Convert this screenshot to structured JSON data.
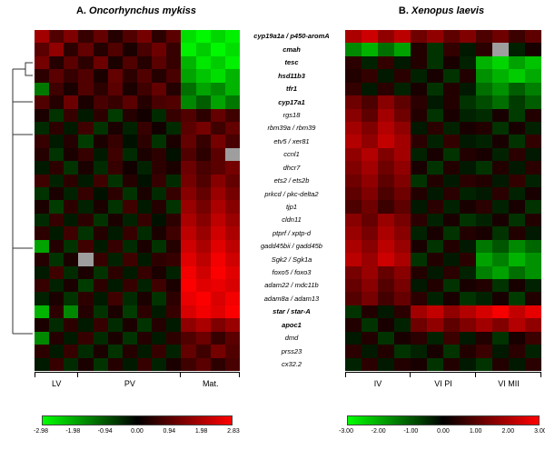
{
  "colors": {
    "low": "#00ff00",
    "mid": "#000000",
    "high": "#ff0000",
    "na": "#9e9e9e"
  },
  "panelA": {
    "title_prefix": "A. ",
    "title_species": "Oncorhynchus mykiss",
    "groups": [
      {
        "label": "LV",
        "cols": 3
      },
      {
        "label": "PV",
        "cols": 7
      },
      {
        "label": "Mat.",
        "cols": 4
      }
    ],
    "scale_labels": [
      "-2.98",
      "-1.98",
      "-0.94",
      "0.00",
      "0.94",
      "1.98",
      "2.83"
    ]
  },
  "panelB": {
    "title_prefix": "B. ",
    "title_species": "Xenopus laevis",
    "groups": [
      {
        "label": "IV",
        "cols": 4
      },
      {
        "label": "VI PI",
        "cols": 4
      },
      {
        "label": "VI MII",
        "cols": 4
      }
    ],
    "scale_labels": [
      "-3.00",
      "-2.00",
      "-1.00",
      "0.00",
      "1.00",
      "2.00",
      "3.00"
    ]
  },
  "genes": [
    {
      "label": "cyp19a1a / p450-aromA",
      "bold": true
    },
    {
      "label": "cmah",
      "bold": true
    },
    {
      "label": "tesc",
      "bold": true
    },
    {
      "label": "hsd11b3",
      "bold": true
    },
    {
      "label": "tfr1",
      "bold": true
    },
    {
      "label": "cyp17a1",
      "bold": true
    },
    {
      "label": "rgs18",
      "bold": false
    },
    {
      "label": "rbm39a / rbm39",
      "bold": false
    },
    {
      "label": "etv5 / xer81",
      "bold": false
    },
    {
      "label": "ccnl1",
      "bold": false
    },
    {
      "label": "dhcr7",
      "bold": false
    },
    {
      "label": "ets2 / ets2b",
      "bold": false
    },
    {
      "label": "prkcd / pkc-delta2",
      "bold": false
    },
    {
      "label": "tjp1",
      "bold": false
    },
    {
      "label": "cldn11",
      "bold": false
    },
    {
      "label": "ptprf / xptp-d",
      "bold": false
    },
    {
      "label": "gadd45bii / gadd45b",
      "bold": false
    },
    {
      "label": "Sgk2 / Sgk1a",
      "bold": false
    },
    {
      "label": "foxo5 / foxo3",
      "bold": false
    },
    {
      "label": "adam22 / mdc11b",
      "bold": false
    },
    {
      "label": "adam8a / adam13",
      "bold": false
    },
    {
      "label": "star / star-A",
      "bold": true
    },
    {
      "label": "apoc1",
      "bold": true
    },
    {
      "label": "dmd",
      "bold": false
    },
    {
      "label": "prss23",
      "bold": false
    },
    {
      "label": "cx32.2",
      "bold": false
    }
  ],
  "chart_data": [
    {
      "type": "heatmap",
      "title": "A. Oncorhynchus mykiss",
      "col_groups": [
        {
          "label": "LV",
          "cols": 3
        },
        {
          "label": "PV",
          "cols": 7
        },
        {
          "label": "Mat.",
          "cols": 4
        }
      ],
      "rows": [
        "cyp19a1a / p450-aromA",
        "cmah",
        "tesc",
        "hsd11b3",
        "tfr1",
        "cyp17a1",
        "rgs18",
        "rbm39a / rbm39",
        "etv5 / xer81",
        "ccnl1",
        "dhcr7",
        "ets2 / ets2b",
        "prkcd / pkc-delta2",
        "tjp1",
        "cldn11",
        "ptprf / xptp-d",
        "gadd45bii / gadd45b",
        "Sgk2 / Sgk1a",
        "foxo5 / foxo3",
        "adam22 / mdc11b",
        "adam8a / adam13",
        "star / star-A",
        "apoc1",
        "dmd",
        "prss23",
        "cx32.2"
      ],
      "colorscale": {
        "min": -2.98,
        "max": 2.83,
        "low": "#00ff00",
        "mid": "#000000",
        "high": "#ff0000",
        "na_color": "#9e9e9e"
      },
      "legend_ticks": [
        -2.98,
        -1.98,
        -0.94,
        0.0,
        0.94,
        1.98,
        2.83
      ],
      "values": [
        [
          1.8,
          0.9,
          1.4,
          0.6,
          1.1,
          0.4,
          0.9,
          1.3,
          0.5,
          1.0,
          -2.6,
          -2.9,
          -2.5,
          -2.8
        ],
        [
          1.0,
          1.6,
          0.5,
          1.1,
          0.4,
          0.9,
          0.3,
          0.8,
          1.2,
          0.6,
          -2.8,
          -2.4,
          -2.9,
          -2.6
        ],
        [
          1.3,
          0.4,
          1.0,
          0.5,
          1.2,
          0.3,
          0.9,
          0.4,
          1.0,
          0.6,
          -2.1,
          -2.7,
          -2.4,
          -2.8
        ],
        [
          0.5,
          1.0,
          0.6,
          0.9,
          0.3,
          1.1,
          0.5,
          0.9,
          0.4,
          0.8,
          -1.9,
          -2.3,
          -2.6,
          -2.1
        ],
        [
          -1.4,
          0.7,
          0.3,
          0.9,
          0.5,
          1.0,
          0.3,
          0.7,
          1.1,
          0.4,
          -1.3,
          -1.9,
          -1.6,
          -2.1
        ],
        [
          0.9,
          0.4,
          1.2,
          0.3,
          0.8,
          0.6,
          1.0,
          0.4,
          0.8,
          0.9,
          -1.6,
          -1.1,
          -1.9,
          -1.4
        ],
        [
          0.3,
          -0.6,
          0.6,
          -0.3,
          0.5,
          -0.7,
          0.4,
          0.2,
          -0.5,
          0.6,
          0.9,
          0.5,
          1.1,
          0.7
        ],
        [
          -0.5,
          0.5,
          -0.3,
          0.7,
          -0.6,
          0.3,
          -0.4,
          0.6,
          0.2,
          -0.5,
          1.0,
          1.3,
          0.7,
          1.1
        ],
        [
          0.6,
          -0.3,
          0.4,
          -0.7,
          0.3,
          0.6,
          -0.2,
          0.5,
          -0.6,
          0.3,
          1.1,
          0.6,
          1.3,
          0.8
        ],
        [
          0.4,
          -0.6,
          0.3,
          0.6,
          -0.3,
          0.7,
          -0.5,
          0.3,
          0.5,
          -0.2,
          0.9,
          0.5,
          1.0,
          null
        ],
        [
          -0.3,
          0.5,
          -0.6,
          0.3,
          -0.5,
          0.6,
          0.2,
          -0.4,
          0.5,
          0.3,
          1.2,
          0.8,
          1.0,
          1.3
        ],
        [
          0.7,
          -0.4,
          0.5,
          -0.3,
          0.7,
          -0.6,
          0.4,
          -0.2,
          0.6,
          -0.5,
          1.3,
          0.9,
          1.5,
          1.1
        ],
        [
          -0.6,
          0.3,
          -0.4,
          0.6,
          -0.2,
          0.5,
          -0.6,
          0.3,
          -0.5,
          0.6,
          1.5,
          1.1,
          1.7,
          1.3
        ],
        [
          0.3,
          -0.7,
          0.5,
          -0.4,
          0.3,
          -0.6,
          0.7,
          -0.3,
          0.4,
          -0.6,
          1.7,
          1.3,
          1.9,
          1.5
        ],
        [
          -0.5,
          0.6,
          -0.3,
          0.5,
          -0.6,
          0.3,
          -0.4,
          0.6,
          -0.2,
          0.5,
          1.9,
          1.5,
          2.1,
          1.7
        ],
        [
          0.5,
          -0.3,
          0.7,
          -0.6,
          0.4,
          -0.3,
          0.6,
          -0.5,
          0.3,
          0.7,
          2.1,
          1.7,
          2.3,
          1.9
        ],
        [
          -1.9,
          0.4,
          -0.6,
          0.7,
          -0.3,
          0.6,
          -0.5,
          0.3,
          -0.6,
          0.4,
          2.3,
          1.9,
          2.5,
          2.1
        ],
        [
          0.4,
          -0.6,
          0.3,
          null,
          0.6,
          -0.4,
          0.7,
          -0.3,
          0.5,
          0.6,
          2.5,
          2.1,
          2.7,
          2.3
        ],
        [
          -0.3,
          0.7,
          -0.5,
          0.3,
          -0.6,
          0.5,
          -0.3,
          0.6,
          0.3,
          -0.4,
          2.7,
          2.3,
          2.8,
          2.5
        ],
        [
          0.6,
          -0.4,
          0.3,
          -0.7,
          0.5,
          -0.3,
          0.6,
          -0.4,
          0.7,
          0.3,
          2.8,
          2.5,
          2.6,
          2.4
        ],
        [
          -0.4,
          0.3,
          -0.6,
          0.5,
          -0.3,
          0.7,
          -0.5,
          0.3,
          -0.6,
          0.5,
          2.6,
          2.8,
          2.4,
          2.7
        ],
        [
          -2.1,
          0.5,
          -1.6,
          0.4,
          -0.6,
          0.3,
          -0.7,
          0.5,
          -0.3,
          0.6,
          2.4,
          2.7,
          2.5,
          2.8
        ],
        [
          0.3,
          -0.5,
          0.5,
          -0.3,
          0.6,
          -0.5,
          0.3,
          -0.6,
          0.4,
          -0.3,
          1.6,
          1.9,
          1.4,
          1.7
        ],
        [
          -1.6,
          0.4,
          -0.3,
          0.6,
          -0.5,
          0.3,
          -0.6,
          0.4,
          -0.3,
          0.5,
          0.9,
          1.2,
          0.6,
          1.0
        ],
        [
          0.5,
          -0.3,
          0.6,
          -0.5,
          0.3,
          -0.6,
          0.4,
          -0.3,
          0.6,
          -0.4,
          1.1,
          0.7,
          1.3,
          0.9
        ],
        [
          -0.3,
          0.6,
          -0.5,
          0.3,
          -0.6,
          0.4,
          -0.3,
          0.6,
          -0.4,
          0.3,
          0.7,
          1.0,
          0.5,
          0.8
        ]
      ]
    },
    {
      "type": "heatmap",
      "title": "B. Xenopus laevis",
      "col_groups": [
        {
          "label": "IV",
          "cols": 4
        },
        {
          "label": "VI PI",
          "cols": 4
        },
        {
          "label": "VI MII",
          "cols": 4
        }
      ],
      "rows": [
        "cyp19a1a / p450-aromA",
        "cmah",
        "tesc",
        "hsd11b3",
        "tfr1",
        "cyp17a1",
        "rgs18",
        "rbm39a / rbm39",
        "etv5 / xer81",
        "ccnl1",
        "dhcr7",
        "ets2 / ets2b",
        "prkcd / pkc-delta2",
        "tjp1",
        "cldn11",
        "ptprf / xptp-d",
        "gadd45bii / gadd45b",
        "Sgk2 / Sgk1a",
        "foxo5 / foxo3",
        "adam22 / mdc11b",
        "adam8a / adam13",
        "star / star-A",
        "apoc1",
        "dmd",
        "prss23",
        "cx32.2"
      ],
      "colorscale": {
        "min": -3.0,
        "max": 3.0,
        "low": "#00ff00",
        "mid": "#000000",
        "high": "#ff0000",
        "na_color": "#9e9e9e"
      },
      "legend_ticks": [
        -3.0,
        -2.0,
        -1.0,
        0.0,
        1.0,
        2.0,
        3.0
      ],
      "values": [
        [
          2.0,
          2.4,
          1.7,
          2.2,
          1.3,
          1.7,
          1.1,
          1.5,
          0.9,
          1.3,
          0.7,
          1.1
        ],
        [
          -1.6,
          -2.1,
          -1.3,
          -1.9,
          0.4,
          -0.6,
          0.6,
          -0.3,
          0.5,
          null,
          -0.4,
          0.3
        ],
        [
          0.5,
          -0.4,
          0.6,
          -0.3,
          0.4,
          -0.6,
          0.3,
          -0.4,
          -2.1,
          -2.5,
          -1.9,
          -2.3
        ],
        [
          0.4,
          0.6,
          -0.3,
          0.5,
          -0.4,
          0.3,
          -0.6,
          0.4,
          -1.7,
          -2.1,
          -2.4,
          -2.0
        ],
        [
          0.6,
          -0.3,
          0.5,
          -0.4,
          0.3,
          -0.6,
          0.4,
          -0.3,
          -1.3,
          -1.7,
          -1.1,
          -1.5
        ],
        [
          1.3,
          0.9,
          1.6,
          1.1,
          0.5,
          -0.3,
          0.4,
          -0.6,
          -0.9,
          -1.3,
          -0.7,
          -1.1
        ],
        [
          1.6,
          1.1,
          1.9,
          1.3,
          0.4,
          -0.6,
          0.3,
          -0.4,
          -0.5,
          0.3,
          -0.7,
          0.4
        ],
        [
          1.9,
          1.5,
          2.1,
          1.7,
          -0.3,
          0.5,
          -0.4,
          0.3,
          0.4,
          -0.6,
          0.3,
          -0.4
        ],
        [
          2.1,
          1.7,
          2.3,
          1.9,
          0.5,
          -0.4,
          0.6,
          -0.3,
          -0.4,
          0.3,
          -0.6,
          0.6
        ],
        [
          1.7,
          2.1,
          1.5,
          1.9,
          -0.4,
          0.3,
          -0.6,
          0.4,
          0.3,
          -0.4,
          0.5,
          -0.3
        ],
        [
          1.5,
          1.9,
          1.3,
          1.7,
          0.3,
          -0.6,
          0.4,
          -0.3,
          -0.6,
          0.4,
          -0.3,
          0.5
        ],
        [
          1.3,
          1.7,
          1.1,
          1.5,
          -0.6,
          0.4,
          -0.3,
          0.5,
          0.4,
          -0.3,
          0.6,
          -0.4
        ],
        [
          1.1,
          1.5,
          0.9,
          1.3,
          0.4,
          -0.3,
          0.5,
          -0.4,
          -0.3,
          0.5,
          -0.4,
          0.3
        ],
        [
          0.9,
          1.3,
          0.7,
          1.1,
          -0.3,
          0.5,
          -0.4,
          0.3,
          0.5,
          -0.4,
          0.3,
          -0.6
        ],
        [
          1.6,
          1.2,
          1.8,
          1.4,
          0.5,
          -0.4,
          0.3,
          -0.6,
          -0.4,
          0.3,
          -0.6,
          0.4
        ],
        [
          1.8,
          1.4,
          2.0,
          1.6,
          -0.4,
          0.3,
          -0.6,
          0.4,
          0.3,
          -0.6,
          0.4,
          -0.3
        ],
        [
          2.0,
          1.6,
          2.2,
          1.8,
          0.3,
          -0.6,
          0.4,
          -0.3,
          -1.4,
          -1.0,
          -1.6,
          -1.2
        ],
        [
          2.2,
          1.8,
          2.4,
          2.0,
          -0.6,
          0.4,
          -0.3,
          0.5,
          -1.9,
          -1.5,
          -2.1,
          -1.7
        ],
        [
          1.4,
          1.8,
          1.2,
          1.6,
          0.4,
          -0.3,
          0.5,
          -0.4,
          -1.5,
          -1.9,
          -1.3,
          -1.7
        ],
        [
          1.2,
          1.6,
          1.0,
          1.4,
          -0.3,
          0.4,
          -0.6,
          0.3,
          0.4,
          -0.6,
          0.3,
          -0.4
        ],
        [
          1.0,
          1.4,
          0.8,
          1.2,
          0.5,
          -0.4,
          0.3,
          -0.6,
          -0.4,
          0.3,
          -0.7,
          0.4
        ],
        [
          -0.6,
          0.4,
          -0.3,
          0.5,
          1.9,
          2.3,
          1.7,
          2.1,
          2.5,
          2.9,
          2.3,
          2.7
        ],
        [
          0.4,
          -0.6,
          0.3,
          -0.4,
          1.3,
          1.7,
          1.1,
          1.5,
          1.9,
          1.5,
          2.1,
          1.7
        ],
        [
          -0.3,
          0.4,
          -0.6,
          0.3,
          0.5,
          -0.4,
          0.7,
          -0.3,
          0.4,
          -0.6,
          0.3,
          0.7
        ],
        [
          0.5,
          -0.3,
          0.4,
          -0.6,
          -0.4,
          0.3,
          -0.6,
          0.4,
          0.7,
          -0.3,
          0.5,
          -0.4
        ],
        [
          -0.4,
          0.5,
          -0.3,
          0.4,
          0.3,
          -0.6,
          0.4,
          -0.3,
          -0.6,
          0.4,
          -0.3,
          0.5
        ]
      ]
    }
  ]
}
